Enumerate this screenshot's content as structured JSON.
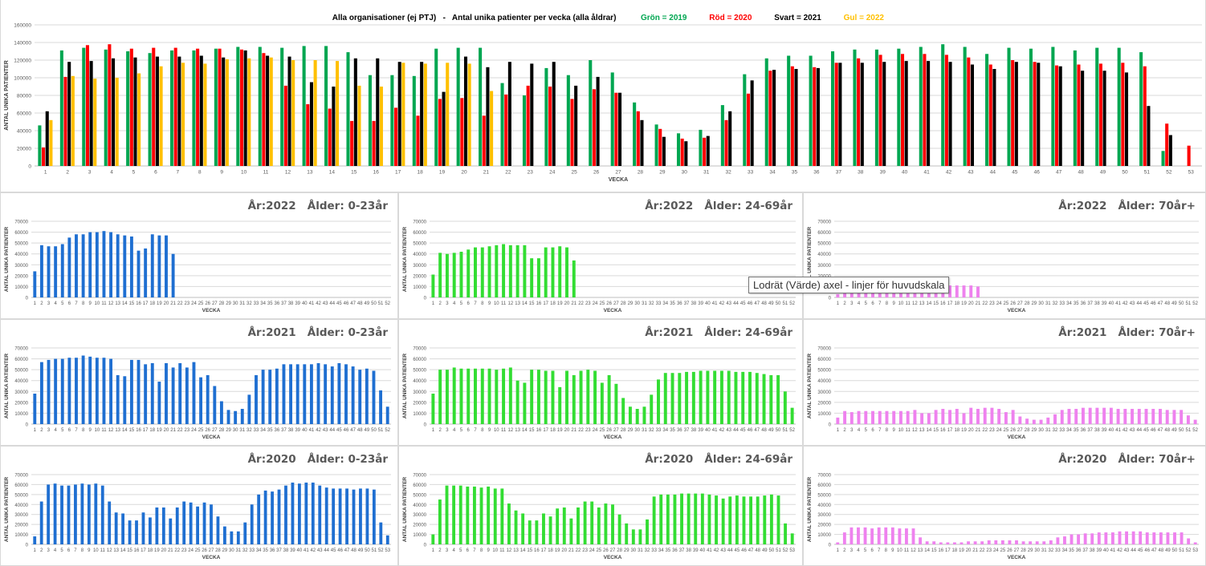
{
  "main_chart": {
    "title_prefix": "Alla organisationer (ej PTJ)   -   Antal unika patienter per vecka (alla åldrar)",
    "legend": [
      {
        "label": "Grön = 2019",
        "color": "#00a651"
      },
      {
        "label": "Röd = 2020",
        "color": "#ff0000"
      },
      {
        "label": "Svart = 2021",
        "color": "#000000"
      },
      {
        "label": "Gul = 2022",
        "color": "#ffc000"
      }
    ]
  },
  "tooltip": "Lodrät (Värde) axel - linjer för huvudskala",
  "chart_data": [
    {
      "type": "bar",
      "title": "Alla organisationer (ej PTJ)   -   Antal unika patienter per vecka (alla åldrar)",
      "xlabel": "VECKA",
      "ylabel": "ANTAL UNIKA PATIENTER",
      "ylim": [
        0,
        160000
      ],
      "yticks": [
        0,
        20000,
        40000,
        60000,
        80000,
        100000,
        120000,
        140000,
        160000
      ],
      "grid": true,
      "categories": [
        "1",
        "2",
        "3",
        "4",
        "5",
        "6",
        "7",
        "8",
        "9",
        "10",
        "11",
        "12",
        "13",
        "14",
        "15",
        "16",
        "17",
        "18",
        "19",
        "20",
        "21",
        "22",
        "23",
        "24",
        "25",
        "26",
        "27",
        "28",
        "29",
        "30",
        "31",
        "32",
        "33",
        "34",
        "35",
        "36",
        "37",
        "38",
        "39",
        "40",
        "41",
        "42",
        "43",
        "44",
        "45",
        "46",
        "47",
        "48",
        "49",
        "50",
        "51",
        "52",
        "53"
      ],
      "series": [
        {
          "name": "Grön = 2019",
          "color": "#00a651",
          "values": [
            46000,
            131000,
            134000,
            132000,
            130000,
            128000,
            131000,
            131000,
            133000,
            135000,
            135000,
            134000,
            136000,
            136000,
            129000,
            103000,
            103000,
            102000,
            133000,
            134000,
            134000,
            94000,
            80000,
            111000,
            103000,
            120000,
            106000,
            72000,
            47000,
            37000,
            41000,
            69000,
            104000,
            122000,
            125000,
            125000,
            130000,
            132000,
            132000,
            133000,
            135000,
            138000,
            135000,
            127000,
            134000,
            133000,
            135000,
            131000,
            134000,
            134000,
            129000,
            17000,
            null
          ]
        },
        {
          "name": "Röd = 2020",
          "color": "#ff0000",
          "values": [
            21000,
            101000,
            137000,
            138000,
            133000,
            134000,
            134000,
            133000,
            133000,
            132000,
            128000,
            91000,
            70000,
            65000,
            51000,
            51000,
            66000,
            57000,
            76000,
            77000,
            57000,
            81000,
            91000,
            90000,
            76000,
            87000,
            83000,
            62000,
            42000,
            31000,
            32000,
            52000,
            82000,
            108000,
            113000,
            112000,
            117000,
            122000,
            126000,
            127000,
            127000,
            126000,
            123000,
            115000,
            120000,
            118000,
            114000,
            115000,
            116000,
            117000,
            113000,
            48000,
            23000
          ]
        },
        {
          "name": "Svart = 2021",
          "color": "#000000",
          "values": [
            62000,
            118000,
            119000,
            122000,
            123000,
            124000,
            124000,
            125000,
            123000,
            131000,
            125000,
            124000,
            95000,
            90000,
            122000,
            122000,
            118000,
            118000,
            84000,
            124000,
            112000,
            118000,
            116000,
            118000,
            91000,
            101000,
            83000,
            52000,
            33000,
            28000,
            34000,
            62000,
            97000,
            109000,
            110000,
            111000,
            117000,
            117000,
            118000,
            119000,
            119000,
            118000,
            115000,
            110000,
            118000,
            117000,
            113000,
            108000,
            108000,
            106000,
            68000,
            35000,
            null
          ]
        },
        {
          "name": "Gul = 2022",
          "color": "#ffc000",
          "values": [
            52000,
            102000,
            99000,
            100000,
            105000,
            113000,
            117000,
            116000,
            121000,
            122000,
            123000,
            120000,
            120000,
            119000,
            91000,
            90000,
            117000,
            116000,
            117000,
            116000,
            85000,
            null,
            null,
            null,
            null,
            null,
            null,
            null,
            null,
            null,
            null,
            null,
            null,
            null,
            null,
            null,
            null,
            null,
            null,
            null,
            null,
            null,
            null,
            null,
            null,
            null,
            null,
            null,
            null,
            null,
            null,
            null,
            null
          ]
        }
      ]
    },
    {
      "type": "bar",
      "title": "År:2022   Ålder: 0-23år",
      "xlabel": "VECKA",
      "ylabel": "ANTAL UNIKA PATIENTER",
      "ylim": [
        0,
        70000
      ],
      "weeks": 52,
      "grid": true,
      "series": [
        {
          "color": "#1f6fd1",
          "values": [
            24000,
            48000,
            47000,
            47000,
            49000,
            55000,
            58000,
            58000,
            60000,
            60000,
            61000,
            60000,
            58000,
            57000,
            56000,
            43000,
            45000,
            58000,
            57000,
            57000,
            40000
          ]
        }
      ]
    },
    {
      "type": "bar",
      "title": "År:2022   Ålder: 24-69år",
      "xlabel": "VECKA",
      "ylabel": "ANTAL UNIKA PATIENTER",
      "ylim": [
        0,
        70000
      ],
      "weeks": 52,
      "grid": true,
      "series": [
        {
          "color": "#33dd33",
          "values": [
            21000,
            41000,
            40000,
            41000,
            42000,
            44000,
            46000,
            46000,
            47000,
            48000,
            49000,
            48000,
            48000,
            48000,
            36000,
            36000,
            46000,
            46000,
            47000,
            46000,
            34000
          ]
        }
      ]
    },
    {
      "type": "bar",
      "title": "År:2022   Ålder: 70år+",
      "xlabel": "VECKA",
      "ylabel": "ANTAL UNIKA PATIENTER",
      "ylim": [
        0,
        70000
      ],
      "weeks": 52,
      "grid": true,
      "series": [
        {
          "color": "#ee82ee",
          "values": [
            3000,
            10000,
            9000,
            9000,
            10000,
            10000,
            10000,
            10000,
            11000,
            11000,
            11000,
            11000,
            11000,
            11000,
            9000,
            9000,
            11000,
            11000,
            11000,
            11000,
            10000
          ]
        }
      ]
    },
    {
      "type": "bar",
      "title": "År:2021   Ålder: 0-23år",
      "xlabel": "VECKA",
      "ylabel": "ANTAL UNIKA PATIENTER",
      "ylim": [
        0,
        70000
      ],
      "weeks": 52,
      "grid": true,
      "series": [
        {
          "color": "#1f6fd1",
          "values": [
            28000,
            57000,
            59000,
            60000,
            60000,
            61000,
            61000,
            63000,
            62000,
            61000,
            61000,
            60000,
            45000,
            44000,
            59000,
            59000,
            55000,
            56000,
            39000,
            56000,
            52000,
            56000,
            52000,
            57000,
            43000,
            45000,
            35000,
            21000,
            13000,
            12000,
            14000,
            27000,
            45000,
            50000,
            50000,
            51000,
            55000,
            55000,
            55000,
            55000,
            55000,
            56000,
            55000,
            53000,
            56000,
            55000,
            53000,
            50000,
            51000,
            49000,
            31000,
            16000
          ]
        }
      ]
    },
    {
      "type": "bar",
      "title": "År:2021   Ålder: 24-69år",
      "xlabel": "VECKA",
      "ylabel": "ANTAL UNIKA PATIENTER",
      "ylim": [
        0,
        70000
      ],
      "weeks": 52,
      "grid": true,
      "series": [
        {
          "color": "#33dd33",
          "values": [
            28000,
            50000,
            50000,
            52000,
            51000,
            51000,
            51000,
            51000,
            51000,
            50000,
            51000,
            52000,
            40000,
            38000,
            50000,
            50000,
            49000,
            49000,
            34000,
            49000,
            45000,
            49000,
            50000,
            49000,
            38000,
            45000,
            37000,
            24000,
            16000,
            14000,
            16000,
            27000,
            41000,
            47000,
            47000,
            47000,
            48000,
            48000,
            49000,
            49000,
            49000,
            49000,
            49000,
            48000,
            48000,
            48000,
            47000,
            46000,
            45000,
            45000,
            30000,
            15000
          ]
        }
      ]
    },
    {
      "type": "bar",
      "title": "År:2021   Ålder: 70år+",
      "xlabel": "VECKA",
      "ylabel": "ANTAL UNIKA PATIENTER",
      "ylim": [
        0,
        70000
      ],
      "weeks": 52,
      "grid": true,
      "series": [
        {
          "color": "#ee82ee",
          "values": [
            6000,
            12000,
            11000,
            12000,
            12000,
            12000,
            12000,
            12000,
            12000,
            12000,
            12000,
            13000,
            10000,
            10000,
            13000,
            14000,
            13000,
            14000,
            10000,
            15000,
            14000,
            15000,
            15000,
            14000,
            11000,
            13000,
            7000,
            5000,
            4000,
            4000,
            6000,
            9000,
            13000,
            14000,
            14000,
            15000,
            15000,
            15000,
            15000,
            15000,
            14000,
            14000,
            14000,
            14000,
            14000,
            14000,
            14000,
            13000,
            13000,
            13000,
            8000,
            4000
          ]
        }
      ]
    },
    {
      "type": "bar",
      "title": "År:2020   Ålder: 0-23år",
      "xlabel": "VECKA",
      "ylabel": "ANTAL UNIKA PATIENTER",
      "ylim": [
        0,
        70000
      ],
      "weeks": 53,
      "grid": true,
      "series": [
        {
          "color": "#1f6fd1",
          "values": [
            8000,
            43000,
            60000,
            61000,
            59000,
            59000,
            60000,
            61000,
            60000,
            61000,
            59000,
            43000,
            32000,
            31000,
            24000,
            24000,
            32000,
            27000,
            37000,
            37000,
            26000,
            37000,
            43000,
            42000,
            38000,
            42000,
            40000,
            28000,
            18000,
            13000,
            13000,
            22000,
            40000,
            50000,
            54000,
            53000,
            55000,
            59000,
            62000,
            61000,
            62000,
            62000,
            59000,
            57000,
            56000,
            56000,
            56000,
            55000,
            56000,
            56000,
            55000,
            22000,
            9000
          ]
        }
      ]
    },
    {
      "type": "bar",
      "title": "År:2020   Ålder: 24-69år",
      "xlabel": "VECKA",
      "ylabel": "ANTAL UNIKA PATIENTER",
      "ylim": [
        0,
        70000
      ],
      "weeks": 53,
      "grid": true,
      "series": [
        {
          "color": "#33dd33",
          "values": [
            10000,
            45000,
            59000,
            59000,
            59000,
            58000,
            58000,
            57000,
            58000,
            56000,
            56000,
            41000,
            34000,
            31000,
            24000,
            24000,
            31000,
            28000,
            36000,
            37000,
            26000,
            37000,
            43000,
            43000,
            37000,
            41000,
            40000,
            30000,
            21000,
            15000,
            15000,
            25000,
            48000,
            50000,
            50000,
            50000,
            51000,
            51000,
            51000,
            51000,
            50000,
            49000,
            46000,
            48000,
            49000,
            48000,
            48000,
            48000,
            49000,
            50000,
            49000,
            21000,
            11000
          ]
        }
      ]
    },
    {
      "type": "bar",
      "title": "År:2020   Ålder: 70år+",
      "xlabel": "VECKA",
      "ylabel": "ANTAL UNIKA PATIENTER",
      "ylim": [
        0,
        70000
      ],
      "weeks": 53,
      "grid": true,
      "series": [
        {
          "color": "#ee82ee",
          "values": [
            2000,
            12000,
            17000,
            17000,
            17000,
            16000,
            17000,
            17000,
            17000,
            16000,
            16000,
            16000,
            7000,
            3000,
            3000,
            2000,
            2000,
            2000,
            2000,
            3000,
            3000,
            3000,
            4000,
            4000,
            4000,
            4000,
            4000,
            3000,
            3000,
            3000,
            3000,
            4000,
            7000,
            8000,
            10000,
            10000,
            11000,
            11000,
            12000,
            12000,
            12000,
            13000,
            13000,
            13000,
            13000,
            12000,
            12000,
            12000,
            12000,
            12000,
            12000,
            6000,
            2000
          ]
        }
      ]
    }
  ]
}
